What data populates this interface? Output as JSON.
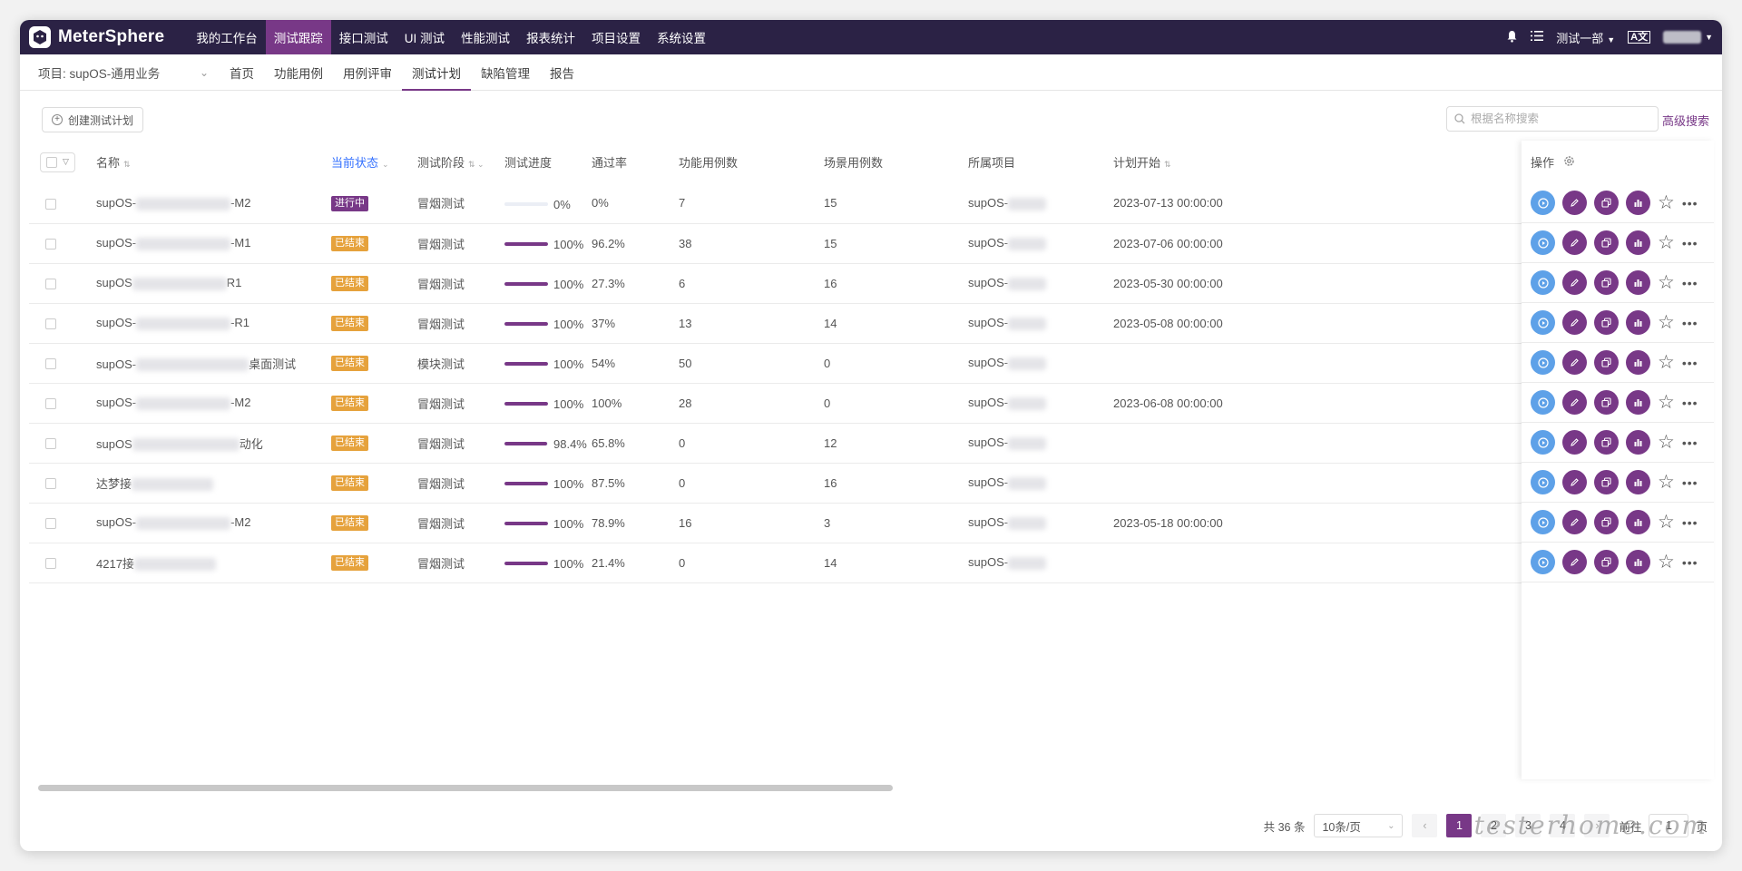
{
  "topnav": {
    "brand": "MeterSphere",
    "menu": [
      "我的工作台",
      "测试跟踪",
      "接口测试",
      "UI 测试",
      "性能测试",
      "报表统计",
      "项目设置",
      "系统设置"
    ],
    "active_index": 1,
    "workspace": "测试一部"
  },
  "subnav": {
    "project": "项目: supOS-通用业务",
    "tabs": [
      "首页",
      "功能用例",
      "用例评审",
      "测试计划",
      "缺陷管理",
      "报告"
    ],
    "active_index": 3
  },
  "toolbar": {
    "create_label": "创建测试计划",
    "search_placeholder": "根据名称搜索",
    "advanced_search": "高级搜索"
  },
  "table": {
    "headers": {
      "name": "名称",
      "status": "当前状态",
      "stage": "测试阶段",
      "progress": "测试进度",
      "pass_rate": "通过率",
      "func_cases": "功能用例数",
      "scenario_cases": "场景用例数",
      "project": "所属项目",
      "plan_start": "计划开始",
      "ops": "操作"
    },
    "rows": [
      {
        "name_pre": "supOS-",
        "name_suf": "-M2",
        "status": "进行中",
        "stage": "冒烟测试",
        "progress": "0%",
        "progress_value": 0,
        "pass_rate": "0%",
        "func": "7",
        "scen": "15",
        "project": "supOS-",
        "start": "2023-07-13 00:00:00"
      },
      {
        "name_pre": "supOS-",
        "name_suf": "-M1",
        "status": "已结束",
        "stage": "冒烟测试",
        "progress": "100%",
        "progress_value": 100,
        "pass_rate": "96.2%",
        "func": "38",
        "scen": "15",
        "project": "supOS-",
        "start": "2023-07-06 00:00:00"
      },
      {
        "name_pre": "supOS",
        "name_suf": "R1",
        "status": "已结束",
        "stage": "冒烟测试",
        "progress": "100%",
        "progress_value": 100,
        "pass_rate": "27.3%",
        "func": "6",
        "scen": "16",
        "project": "supOS-",
        "start": "2023-05-30 00:00:00"
      },
      {
        "name_pre": "supOS-",
        "name_suf": "-R1",
        "status": "已结束",
        "stage": "冒烟测试",
        "progress": "100%",
        "progress_value": 100,
        "pass_rate": "37%",
        "func": "13",
        "scen": "14",
        "project": "supOS-",
        "start": "2023-05-08 00:00:00"
      },
      {
        "name_pre": "supOS-",
        "name_suf": "桌面测试",
        "status": "已结束",
        "stage": "模块测试",
        "progress": "100%",
        "progress_value": 100,
        "pass_rate": "54%",
        "func": "50",
        "scen": "0",
        "project": "supOS-",
        "start": ""
      },
      {
        "name_pre": "supOS-",
        "name_suf": "-M2",
        "status": "已结束",
        "stage": "冒烟测试",
        "progress": "100%",
        "progress_value": 100,
        "pass_rate": "100%",
        "func": "28",
        "scen": "0",
        "project": "supOS-",
        "start": "2023-06-08 00:00:00"
      },
      {
        "name_pre": "supOS",
        "name_suf": "动化",
        "status": "已结束",
        "stage": "冒烟测试",
        "progress": "98.4%",
        "progress_value": 98.4,
        "pass_rate": "65.8%",
        "func": "0",
        "scen": "12",
        "project": "supOS-",
        "start": ""
      },
      {
        "name_pre": "达梦接",
        "name_suf": "",
        "status": "已结束",
        "stage": "冒烟测试",
        "progress": "100%",
        "progress_value": 100,
        "pass_rate": "87.5%",
        "func": "0",
        "scen": "16",
        "project": "supOS-",
        "start": ""
      },
      {
        "name_pre": "supOS-",
        "name_suf": "-M2",
        "status": "已结束",
        "stage": "冒烟测试",
        "progress": "100%",
        "progress_value": 100,
        "pass_rate": "78.9%",
        "func": "16",
        "scen": "3",
        "project": "supOS-",
        "start": "2023-05-18 00:00:00"
      },
      {
        "name_pre": "4217接",
        "name_suf": "",
        "status": "已结束",
        "stage": "冒烟测试",
        "progress": "100%",
        "progress_value": 100,
        "pass_rate": "21.4%",
        "func": "0",
        "scen": "14",
        "project": "supOS-",
        "start": ""
      }
    ]
  },
  "pagination": {
    "total": "共 36 条",
    "page_size": "10条/页",
    "pages": [
      "1",
      "2",
      "3",
      "4"
    ],
    "current": "1",
    "goto_prefix": "前往",
    "goto_value": "1",
    "goto_suffix": "页"
  },
  "watermark": "testerhome.com",
  "colors": {
    "nav_bg": "#2b2245",
    "accent": "#783887",
    "running_badge": "#783887",
    "done_badge": "#e6a23c",
    "run_button": "#5ea1e8"
  }
}
